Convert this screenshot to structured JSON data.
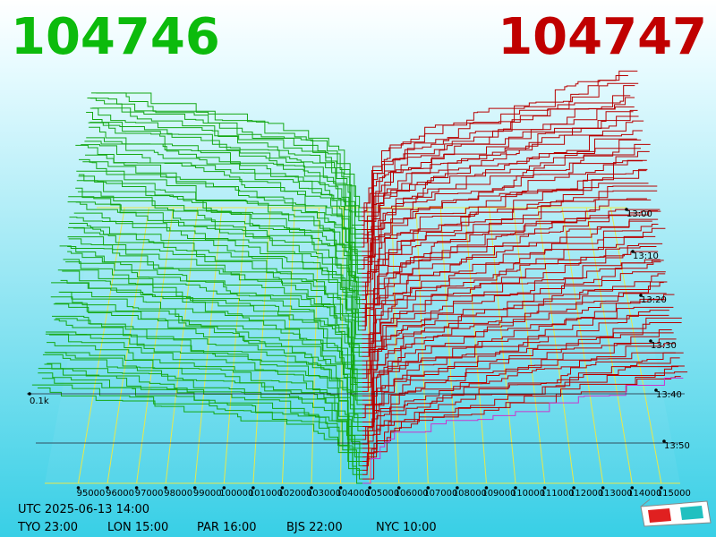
{
  "header": {
    "bid": "104746",
    "ask": "104747"
  },
  "price_axis": {
    "labels": [
      "95000",
      "96000",
      "97000",
      "98000",
      "99000",
      "100000",
      "101000",
      "102000",
      "103000",
      "104000",
      "105000",
      "106000",
      "107000",
      "108000",
      "109000",
      "110000",
      "111000",
      "112000",
      "113000",
      "114000",
      "115000"
    ]
  },
  "time_axis": {
    "labels": [
      "13:00",
      "13:10",
      "13:20",
      "13:30",
      "13:40",
      "13:50"
    ]
  },
  "volume_label": "0.1k",
  "footer": {
    "utc": "UTC 2025-06-13 14:00",
    "zones": [
      "TYO 23:00",
      "LON 15:00",
      "PAR 16:00",
      "BJS 22:00",
      "NYC 10:00"
    ]
  }
}
